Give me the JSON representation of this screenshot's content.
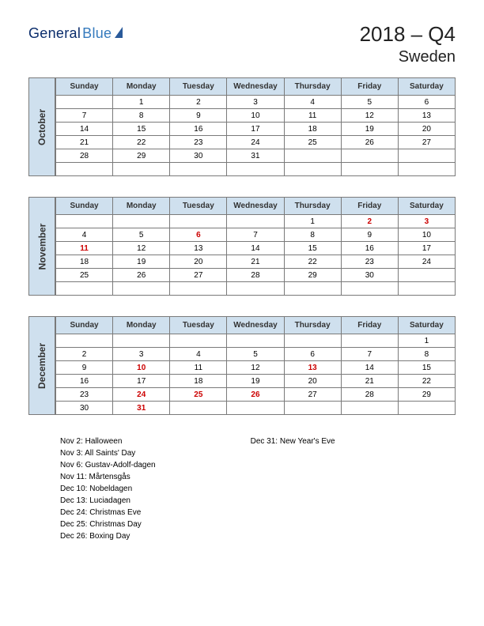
{
  "logo": {
    "part1": "General",
    "part2": "Blue"
  },
  "title": {
    "main": "2018 – Q4",
    "sub": "Sweden"
  },
  "colors": {
    "header_bg": "#cfe0ee",
    "border": "#7a7a7a",
    "holiday_text": "#cc0000",
    "logo_dark": "#0a2c6b",
    "logo_light": "#357abd"
  },
  "weekdays": [
    "Sunday",
    "Monday",
    "Tuesday",
    "Wednesday",
    "Thursday",
    "Friday",
    "Saturday"
  ],
  "months": [
    {
      "name": "October",
      "rows": [
        [
          "",
          "1",
          "2",
          "3",
          "4",
          "5",
          "6"
        ],
        [
          "7",
          "8",
          "9",
          "10",
          "11",
          "12",
          "13"
        ],
        [
          "14",
          "15",
          "16",
          "17",
          "18",
          "19",
          "20"
        ],
        [
          "21",
          "22",
          "23",
          "24",
          "25",
          "26",
          "27"
        ],
        [
          "28",
          "29",
          "30",
          "31",
          "",
          "",
          ""
        ],
        [
          "",
          "",
          "",
          "",
          "",
          "",
          ""
        ]
      ],
      "holidays": []
    },
    {
      "name": "November",
      "rows": [
        [
          "",
          "",
          "",
          "",
          "1",
          "2",
          "3"
        ],
        [
          "4",
          "5",
          "6",
          "7",
          "8",
          "9",
          "10"
        ],
        [
          "11",
          "12",
          "13",
          "14",
          "15",
          "16",
          "17"
        ],
        [
          "18",
          "19",
          "20",
          "21",
          "22",
          "23",
          "24"
        ],
        [
          "25",
          "26",
          "27",
          "28",
          "29",
          "30",
          ""
        ],
        [
          "",
          "",
          "",
          "",
          "",
          "",
          ""
        ]
      ],
      "holidays": [
        "2",
        "3",
        "6",
        "11"
      ]
    },
    {
      "name": "December",
      "rows": [
        [
          "",
          "",
          "",
          "",
          "",
          "",
          "1"
        ],
        [
          "2",
          "3",
          "4",
          "5",
          "6",
          "7",
          "8"
        ],
        [
          "9",
          "10",
          "11",
          "12",
          "13",
          "14",
          "15"
        ],
        [
          "16",
          "17",
          "18",
          "19",
          "20",
          "21",
          "22"
        ],
        [
          "23",
          "24",
          "25",
          "26",
          "27",
          "28",
          "29"
        ],
        [
          "30",
          "31",
          "",
          "",
          "",
          "",
          ""
        ]
      ],
      "holidays": [
        "10",
        "13",
        "24",
        "25",
        "26",
        "31"
      ]
    }
  ],
  "holiday_list": {
    "col1": [
      "Nov 2: Halloween",
      "Nov 3: All Saints' Day",
      "Nov 6: Gustav-Adolf-dagen",
      "Nov 11: Mårtensgås",
      "Dec 10: Nobeldagen",
      "Dec 13: Luciadagen",
      "Dec 24: Christmas Eve",
      "Dec 25: Christmas Day",
      "Dec 26: Boxing Day"
    ],
    "col2": [
      "Dec 31: New Year's Eve"
    ]
  }
}
